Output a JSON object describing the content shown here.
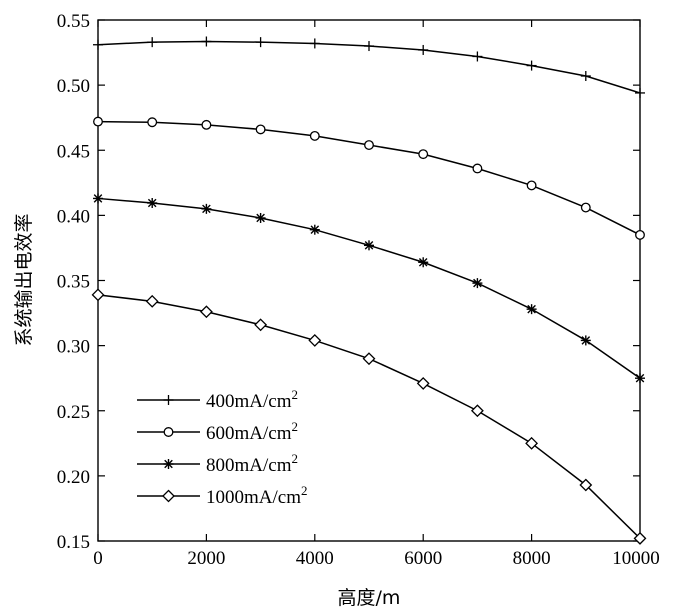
{
  "chart_data": {
    "type": "line",
    "title": "",
    "xlabel": "高度/m",
    "ylabel": "系统输出电效率",
    "xlim": [
      0,
      10000
    ],
    "ylim": [
      0.15,
      0.55
    ],
    "xticks": [
      0,
      2000,
      4000,
      6000,
      8000,
      10000
    ],
    "xtick_labels": [
      "0",
      "2000",
      "4000",
      "6000",
      "8000",
      "10000"
    ],
    "yticks": [
      0.15,
      0.2,
      0.25,
      0.3,
      0.35,
      0.4,
      0.45,
      0.5,
      0.55
    ],
    "ytick_labels": [
      "0.15",
      "0.20",
      "0.25",
      "0.30",
      "0.35",
      "0.40",
      "0.45",
      "0.50",
      "0.55"
    ],
    "grid": false,
    "legend_position": "bottom-left",
    "x": [
      0,
      1000,
      2000,
      3000,
      4000,
      5000,
      6000,
      7000,
      8000,
      9000,
      10000
    ],
    "series": [
      {
        "name": "400mA/cm",
        "name_sup": "2",
        "marker": "plus",
        "values": [
          0.531,
          0.533,
          0.5335,
          0.533,
          0.532,
          0.53,
          0.527,
          0.522,
          0.515,
          0.507,
          0.494
        ]
      },
      {
        "name": "600mA/cm",
        "name_sup": "2",
        "marker": "circle",
        "values": [
          0.472,
          0.4715,
          0.4695,
          0.466,
          0.461,
          0.454,
          0.447,
          0.436,
          0.423,
          0.406,
          0.385
        ]
      },
      {
        "name": "800mA/cm",
        "name_sup": "2",
        "marker": "star",
        "values": [
          0.413,
          0.4095,
          0.405,
          0.398,
          0.389,
          0.377,
          0.364,
          0.348,
          0.328,
          0.304,
          0.275
        ]
      },
      {
        "name": "1000mA/cm",
        "name_sup": "2",
        "marker": "diamond",
        "values": [
          0.339,
          0.334,
          0.326,
          0.316,
          0.304,
          0.29,
          0.271,
          0.25,
          0.225,
          0.193,
          0.152
        ]
      }
    ]
  }
}
